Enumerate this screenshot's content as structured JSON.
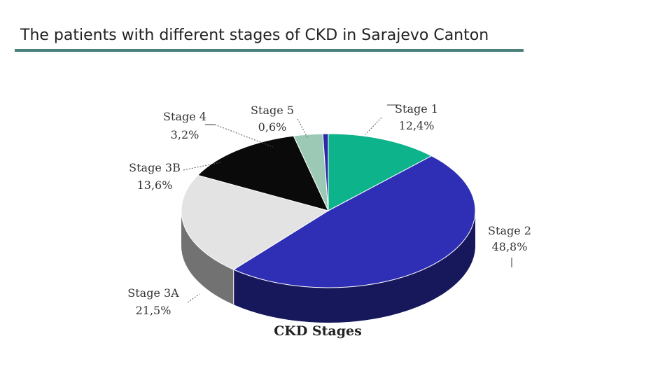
{
  "slide": {
    "title": "The patients with different stages of CKD in Sarajevo Canton"
  },
  "chart_data": {
    "type": "pie",
    "title": "CKD Stages",
    "slices": [
      {
        "name": "Stage 1",
        "value": 12.4,
        "label": "12,4%",
        "color": "#0db38a"
      },
      {
        "name": "Stage 2",
        "value": 48.8,
        "label": "48,8%",
        "color": "#2e2fb5"
      },
      {
        "name": "Stage 3A",
        "value": 21.5,
        "label": "21,5%",
        "color": "#e3e3e3"
      },
      {
        "name": "Stage 3B",
        "value": 13.6,
        "label": "13,6%",
        "color": "#0a0a0a"
      },
      {
        "name": "Stage 4",
        "value": 3.2,
        "label": "3,2%",
        "color": "#9cc9b5"
      },
      {
        "name": "Stage 5",
        "value": 0.6,
        "label": "0,6%",
        "color": "#2a2ca6"
      }
    ]
  }
}
